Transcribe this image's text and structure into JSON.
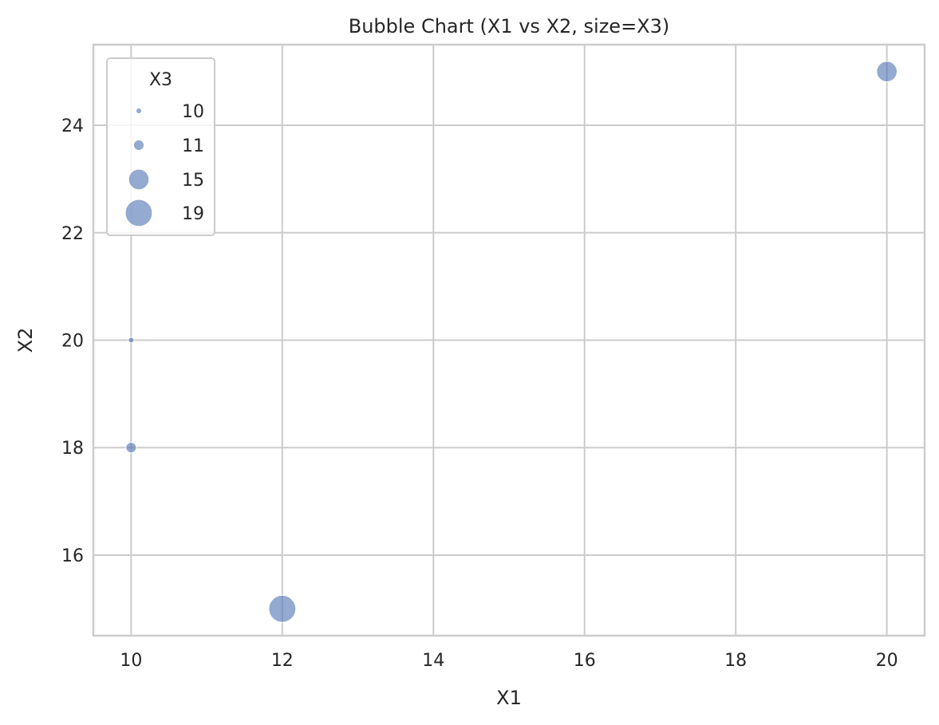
{
  "chart_data": {
    "type": "scatter",
    "title": "Bubble Chart (X1 vs X2, size=X3)",
    "xlabel": "X1",
    "ylabel": "X2",
    "xlim": [
      9.5,
      20.5
    ],
    "ylim": [
      14.5,
      25.5
    ],
    "xticks": [
      10,
      12,
      14,
      16,
      18,
      20
    ],
    "yticks": [
      16,
      18,
      20,
      22,
      24
    ],
    "grid": true,
    "legend": {
      "title": "X3",
      "placement": "top-left",
      "entries": [
        {
          "label": "10",
          "size": 10
        },
        {
          "label": "11",
          "size": 11
        },
        {
          "label": "15",
          "size": 15
        },
        {
          "label": "19",
          "size": 19
        }
      ]
    },
    "points": [
      {
        "x": 10,
        "y": 20,
        "size": 10
      },
      {
        "x": 10,
        "y": 18,
        "size": 11
      },
      {
        "x": 12,
        "y": 15,
        "size": 19
      },
      {
        "x": 20,
        "y": 25,
        "size": 15
      }
    ],
    "size_range": [
      10,
      19
    ],
    "colors": {
      "marker": "#4c72b0",
      "grid": "#cccccc",
      "axes_edge": "#cccccc",
      "text": "#262626"
    }
  }
}
